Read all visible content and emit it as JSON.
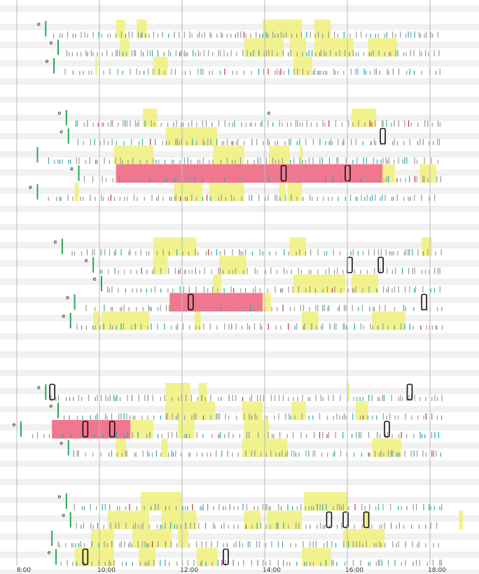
{
  "chart_data": {
    "type": "timeline",
    "title": "",
    "xlabel": "",
    "ylabel": "",
    "x_range_hours": [
      7.8,
      18.8
    ],
    "x_ticks": [
      "8:00",
      "10:00",
      "12:00",
      "14:00",
      "16:00",
      "18:00"
    ],
    "grid": "vertical lines at each hour tick",
    "row_label_text": "e",
    "colors": {
      "highlight": "#f0f07a",
      "alert": "#f07088",
      "start_mark": "#22aa55",
      "event_teal": "#2aa9b5",
      "event_grey": "#9a9a9a",
      "event_red": "#c03040",
      "outline": "#111111",
      "stripe": "#f1f1f1"
    },
    "groups": [
      {
        "rows": [
          {
            "start": 8.7,
            "label": true,
            "yellow": [
              [
                10.4,
                10.62
              ],
              [
                10.9,
                11.15
              ],
              [
                13.95,
                14.9
              ],
              [
                15.2,
                15.6
              ]
            ],
            "pink": [],
            "outlines": [],
            "density": 0.8
          },
          {
            "start": 9.0,
            "label": true,
            "yellow": [
              [
                10.5,
                10.72
              ],
              [
                13.5,
                14.45
              ],
              [
                14.6,
                15.0
              ],
              [
                15.2,
                16.15
              ],
              [
                16.5,
                17.2
              ]
            ],
            "pink": [],
            "outlines": [],
            "density": 0.8
          },
          {
            "start": 8.9,
            "label": true,
            "yellow": [
              [
                9.9,
                9.95
              ],
              [
                11.3,
                11.65
              ],
              [
                14.7,
                15.15
              ]
            ],
            "pink": [],
            "outlines": [],
            "density": 0.6
          }
        ]
      },
      {
        "rows": [
          {
            "start": 9.2,
            "label": true,
            "yellow": [
              [
                11.05,
                11.4
              ],
              [
                16.1,
                16.7
              ]
            ],
            "pink": [],
            "outlines": [],
            "density": 0.7
          },
          {
            "start": 9.25,
            "label": true,
            "yellow": [
              [
                11.6,
                12.85
              ]
            ],
            "pink": [],
            "outlines": [
              16.85
            ],
            "density": 0.6
          },
          {
            "start": 8.5,
            "label": false,
            "yellow": [
              [
                10.35,
                11.3
              ],
              [
                12.75,
                13.5
              ],
              [
                14.1,
                14.6
              ],
              [
                14.85,
                14.92
              ]
            ],
            "pink": [],
            "outlines": [],
            "density": 0.6
          },
          {
            "start": 9.5,
            "label": true,
            "yellow": [
              [
                16.85,
                17.15
              ],
              [
                17.75,
                18.15
              ]
            ],
            "pink": [
              [
                10.4,
                16.85
              ]
            ],
            "outlines": [
              14.45,
              16.0
            ],
            "density": 0.5
          },
          {
            "start": 8.5,
            "label": true,
            "yellow": [
              [
                9.4,
                9.5
              ],
              [
                11.8,
                12.5
              ],
              [
                12.65,
                13.5
              ],
              [
                14.35,
                14.5
              ],
              [
                14.55,
                14.9
              ]
            ],
            "pink": [],
            "outlines": [],
            "density": 0.6
          }
        ]
      },
      {
        "rows": [
          {
            "start": 9.1,
            "label": true,
            "yellow": [
              [
                11.3,
                12.35
              ],
              [
                14.6,
                15.0
              ],
              [
                17.8,
                18.05
              ]
            ],
            "pink": [],
            "outlines": [],
            "density": 0.6
          },
          {
            "start": 9.85,
            "label": true,
            "yellow": [
              [
                11.3,
                11.65
              ],
              [
                12.9,
                13.55
              ]
            ],
            "pink": [],
            "outlines": [
              16.05,
              16.8
            ],
            "density": 0.6
          },
          {
            "start": 10.05,
            "label": true,
            "yellow": [
              [
                12.75,
                12.95
              ],
              [
                14.7,
                15.95
              ],
              [
                16.1,
                16.75
              ]
            ],
            "pink": [],
            "outlines": [],
            "density": 0.6
          },
          {
            "start": 9.4,
            "label": true,
            "yellow": [
              [
                13.95,
                14.15
              ]
            ],
            "pink": [
              [
                11.7,
                13.95
              ]
            ],
            "outlines": [
              12.2,
              17.85
            ],
            "density": 0.5
          },
          {
            "start": 9.3,
            "label": true,
            "yellow": [
              [
                9.85,
                10.0
              ],
              [
                10.05,
                11.2
              ],
              [
                12.3,
                12.45
              ],
              [
                14.9,
                15.3
              ],
              [
                16.6,
                17.4
              ]
            ],
            "pink": [],
            "outlines": [],
            "density": 0.6
          }
        ]
      },
      {
        "rows": [
          {
            "start": 8.7,
            "label": true,
            "yellow": [
              [
                11.6,
                12.2
              ],
              [
                12.4,
                12.6
              ],
              [
                16.0,
                16.05
              ]
            ],
            "pink": [],
            "outlines": [
              8.85,
              17.5
            ],
            "density": 0.6
          },
          {
            "start": 9.0,
            "label": true,
            "yellow": [
              [
                11.6,
                12.8
              ],
              [
                13.45,
                13.95
              ],
              [
                14.65,
                15.0
              ],
              [
                16.2,
                16.5
              ]
            ],
            "pink": [],
            "outlines": [],
            "density": 0.6
          },
          {
            "start": 8.1,
            "label": true,
            "yellow": [
              [
                10.75,
                11.3
              ],
              [
                11.9,
                12.3
              ],
              [
                13.5,
                14.1
              ]
            ],
            "pink": [
              [
                8.85,
                10.75
              ]
            ],
            "outlines": [
              9.65,
              10.3,
              16.95
            ],
            "density": 0.5
          },
          {
            "start": 9.25,
            "label": true,
            "yellow": [
              [
                10.4,
                10.65
              ],
              [
                11.5,
                11.65
              ],
              [
                13.45,
                14.55
              ],
              [
                16.6,
                17.3
              ]
            ],
            "pink": [],
            "outlines": [],
            "density": 0.6
          }
        ]
      },
      {
        "rows": [
          {
            "start": 9.2,
            "label": true,
            "yellow": [
              [
                11.0,
                12.0
              ],
              [
                14.95,
                16.0
              ]
            ],
            "pink": [],
            "outlines": [],
            "density": 0.6
          },
          {
            "start": 9.3,
            "label": true,
            "yellow": [
              [
                10.2,
                11.2
              ],
              [
                11.5,
                12.35
              ],
              [
                13.5,
                13.9
              ],
              [
                14.05,
                14.9
              ],
              [
                16.4,
                16.55
              ],
              [
                18.7,
                18.8
              ]
            ],
            "pink": [],
            "outlines": [
              15.55,
              15.95,
              16.45
            ],
            "density": 0.6
          },
          {
            "start": 8.85,
            "label": false,
            "yellow": [
              [
                9.8,
                10.35
              ],
              [
                10.8,
                11.75
              ],
              [
                11.9,
                12.15
              ],
              [
                15.9,
                16.9
              ]
            ],
            "pink": [],
            "outlines": [],
            "density": 0.6
          },
          {
            "start": 8.95,
            "label": true,
            "yellow": [
              [
                9.4,
                10.35
              ],
              [
                10.95,
                11.35
              ],
              [
                12.35,
                12.85
              ],
              [
                14.9,
                15.6
              ]
            ],
            "pink": [],
            "outlines": [
              9.65,
              13.05
            ],
            "density": 0.6
          }
        ]
      }
    ],
    "floating_labels": [
      {
        "group": 1,
        "row": 0,
        "hour": 14.1
      }
    ]
  }
}
